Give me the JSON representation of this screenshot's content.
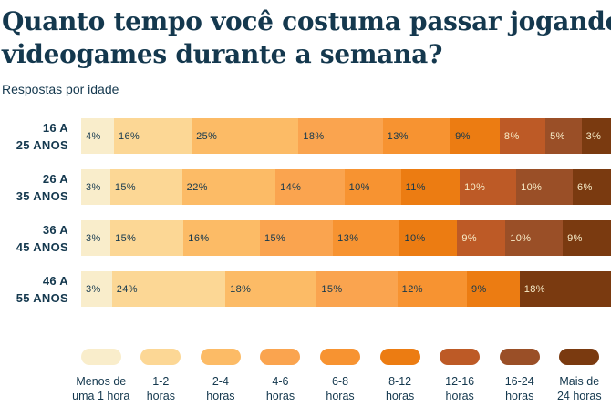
{
  "header": {
    "title_line1": "Quanto tempo você costuma passar jogando",
    "title_line2": "videogames durante a semana?",
    "subtitle": "Respostas por idade"
  },
  "colors": {
    "background": "#ffffff",
    "text": "#14384e",
    "light_label": "#f8edc9",
    "light_label_from_index": 6
  },
  "chart_data": {
    "type": "bar",
    "variant": "horizontal-stacked-100pct",
    "title": "Quanto tempo você costuma passar jogando videogames durante a semana?",
    "subtitle": "Respostas por idade",
    "unit": "%",
    "legend_position": "bottom",
    "categories": [
      "Menos de uma 1 hora",
      "1-2 horas",
      "2-4 horas",
      "4-6 horas",
      "6-8 horas",
      "8-12 horas",
      "12-16 horas",
      "16-24 horas",
      "Mais de 24 horas"
    ],
    "palette": [
      "#f9edcb",
      "#fcd795",
      "#fcbb66",
      "#faa44f",
      "#f79331",
      "#ec7c12",
      "#bd5a26",
      "#9a4f27",
      "#7a3a10"
    ],
    "groups": [
      {
        "label": "16 A 25 ANOS",
        "label_lines": [
          "16 A",
          "25 ANOS"
        ],
        "segments": [
          {
            "category": 0,
            "value": 4
          },
          {
            "category": 1,
            "value": 16
          },
          {
            "category": 2,
            "value": 25
          },
          {
            "category": 3,
            "value": 18
          },
          {
            "category": 4,
            "value": 13
          },
          {
            "category": 5,
            "value": 9
          },
          {
            "category": 6,
            "value": 8
          },
          {
            "category": 7,
            "value": 5
          },
          {
            "category": 8,
            "value": 3
          }
        ]
      },
      {
        "label": "26 A 35 ANOS",
        "label_lines": [
          "26 A",
          "35 ANOS"
        ],
        "segments": [
          {
            "category": 0,
            "value": 3
          },
          {
            "category": 1,
            "value": 15
          },
          {
            "category": 2,
            "value": 22
          },
          {
            "category": 3,
            "value": 14
          },
          {
            "category": 4,
            "value": 10
          },
          {
            "category": 5,
            "value": 11
          },
          {
            "category": 6,
            "value": 10
          },
          {
            "category": 7,
            "value": 10
          },
          {
            "category": 8,
            "value": 6
          }
        ]
      },
      {
        "label": "36 A 45 ANOS",
        "label_lines": [
          "36 A",
          "45 ANOS"
        ],
        "segments": [
          {
            "category": 0,
            "value": 3
          },
          {
            "category": 1,
            "value": 15
          },
          {
            "category": 2,
            "value": 16
          },
          {
            "category": 3,
            "value": 15
          },
          {
            "category": 4,
            "value": 13
          },
          {
            "category": 5,
            "value": 10
          },
          {
            "category": 6,
            "value": 9
          },
          {
            "category": 7,
            "value": 10
          },
          {
            "category": 8,
            "value": 9
          }
        ]
      },
      {
        "label": "46 A 55 ANOS",
        "label_lines": [
          "46 A",
          "55 ANOS"
        ],
        "segments": [
          {
            "category": 0,
            "value": 3
          },
          {
            "category": 1,
            "value": 24
          },
          {
            "category": 2,
            "value": 18
          },
          {
            "category": 3,
            "value": 15
          },
          {
            "category": 4,
            "value": 12
          },
          {
            "category": 5,
            "value": 9
          },
          {
            "category": 8,
            "value": 18
          }
        ]
      }
    ],
    "legend": [
      {
        "lines": [
          "Menos de",
          "uma 1 hora"
        ],
        "color_index": 0
      },
      {
        "lines": [
          "1-2",
          "horas"
        ],
        "color_index": 1
      },
      {
        "lines": [
          "2-4",
          "horas"
        ],
        "color_index": 2
      },
      {
        "lines": [
          "4-6",
          "horas"
        ],
        "color_index": 3
      },
      {
        "lines": [
          "6-8",
          "horas"
        ],
        "color_index": 4
      },
      {
        "lines": [
          "8-12",
          "horas"
        ],
        "color_index": 5
      },
      {
        "lines": [
          "12-16",
          "horas"
        ],
        "color_index": 6
      },
      {
        "lines": [
          "16-24",
          "horas"
        ],
        "color_index": 7
      },
      {
        "lines": [
          "Mais de",
          "24 horas"
        ],
        "color_index": 8
      }
    ]
  }
}
